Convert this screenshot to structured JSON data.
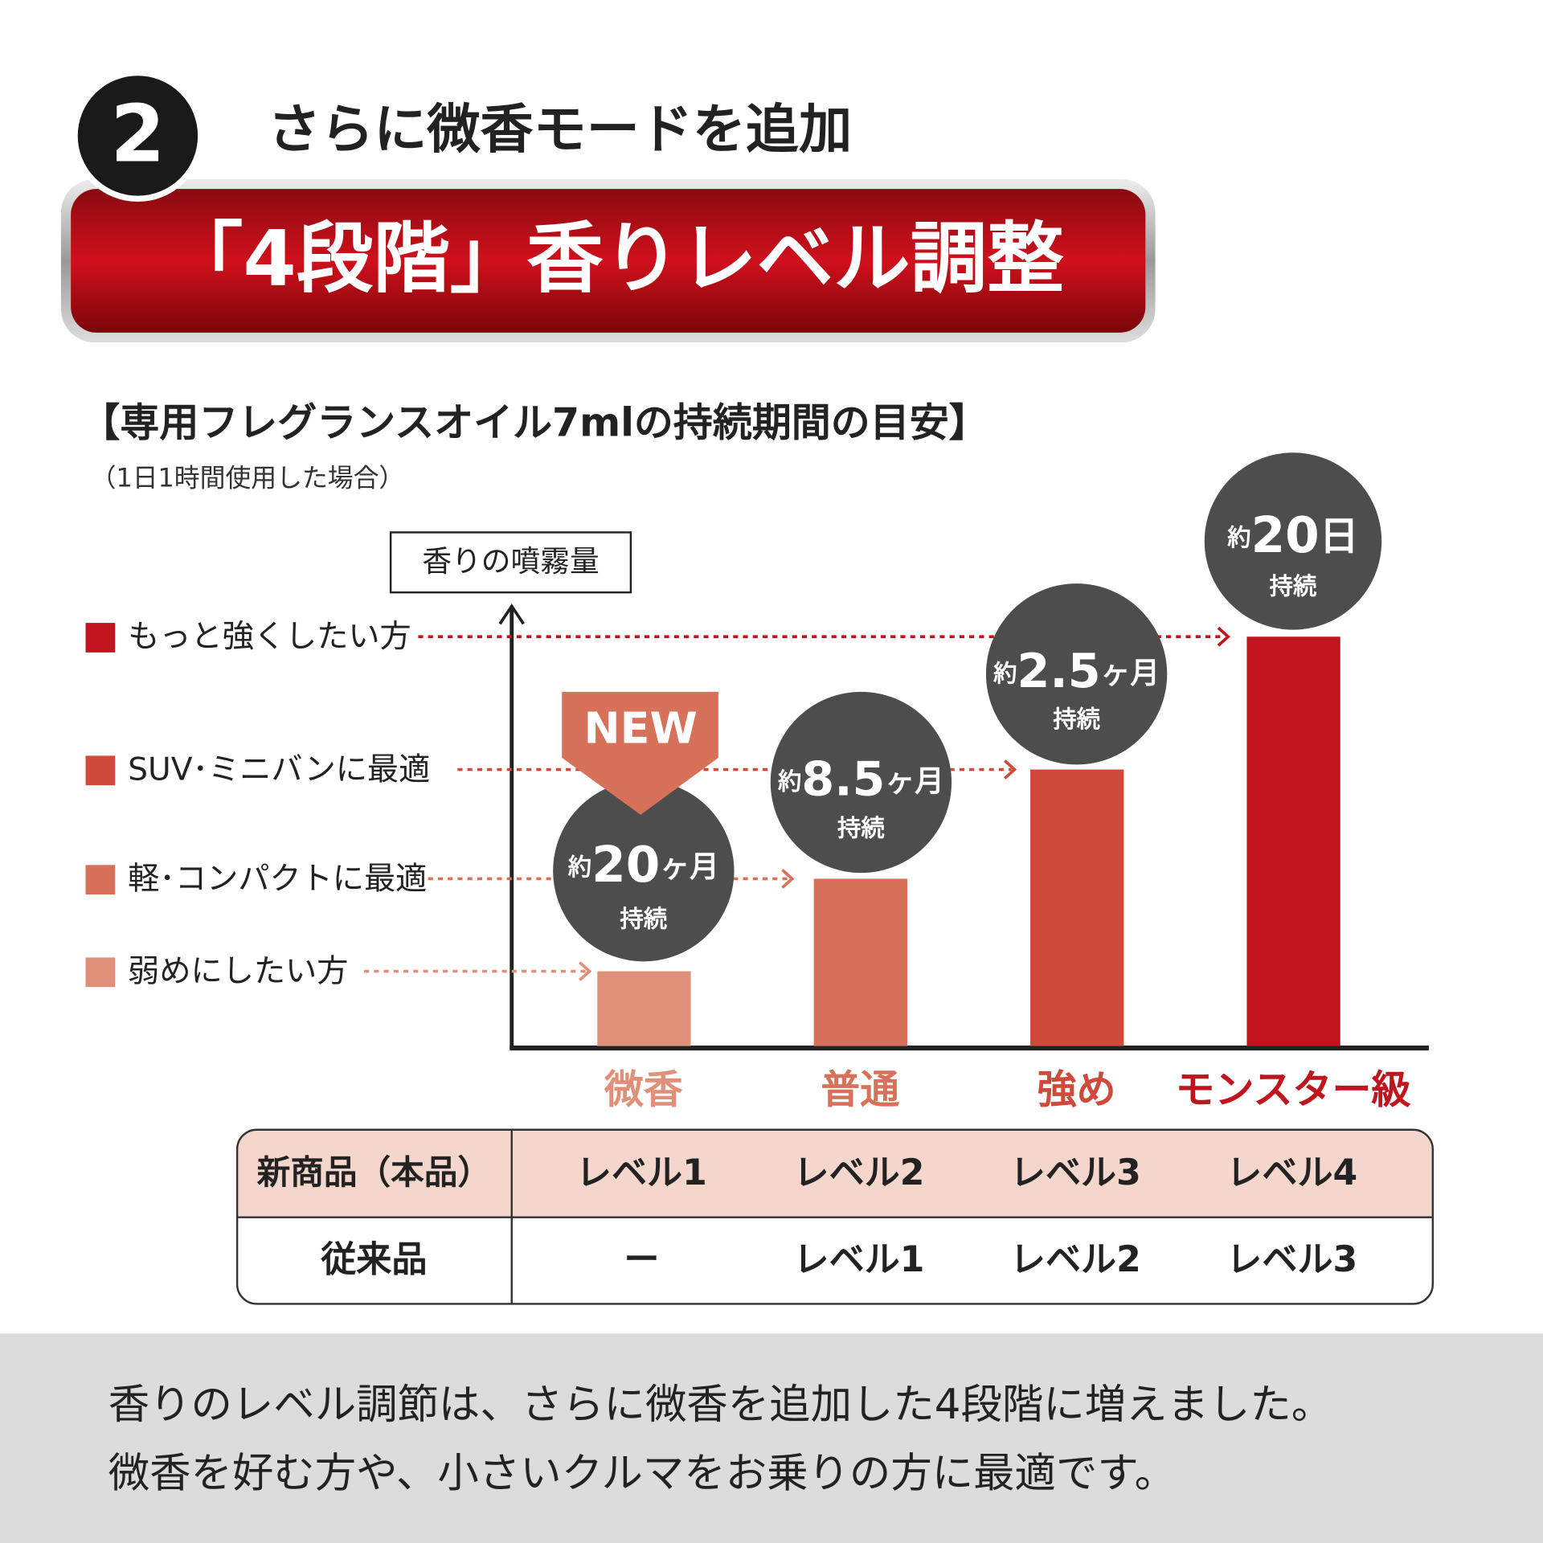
{
  "header": {
    "number": "2",
    "subtitle": "さらに微香モードを追加",
    "title": "「4段階」香りレベル調整"
  },
  "chart": {
    "heading": "【専用フレグランスオイル7mlの持続期間の目安】",
    "note": "（1日1時間使用した場合）",
    "axis_label": "香りの噴霧量",
    "levels": [
      "もっと強くしたい方",
      "SUV･ミニバンに最適",
      "軽･コンパクトに最適",
      "弱めにしたい方"
    ],
    "badge": "NEW",
    "bars": [
      {
        "name": "微香",
        "prefix": "約",
        "amount": "20",
        "unit": "ヶ月",
        "suffix": "持続"
      },
      {
        "name": "普通",
        "prefix": "約",
        "amount": "8.5",
        "unit": "ヶ月",
        "suffix": "持続"
      },
      {
        "name": "強め",
        "prefix": "約",
        "amount": "2.5",
        "unit": "ヶ月",
        "suffix": "持続"
      },
      {
        "name": "モンスター級",
        "prefix": "約",
        "amount": "20",
        "unit": "日",
        "suffix": "持続"
      }
    ]
  },
  "table": {
    "rows": [
      [
        "新商品（本品）",
        "レベル1",
        "レベル2",
        "レベル3",
        "レベル4"
      ],
      [
        "従来品",
        "ー",
        "レベル1",
        "レベル2",
        "レベル3"
      ]
    ]
  },
  "footer": {
    "lines": [
      "香りのレベル調節は、さらに微香を追加した4段階に増えました。",
      "微香を好む方や、小さいクルマをお乗りの方に最適です。"
    ]
  }
}
